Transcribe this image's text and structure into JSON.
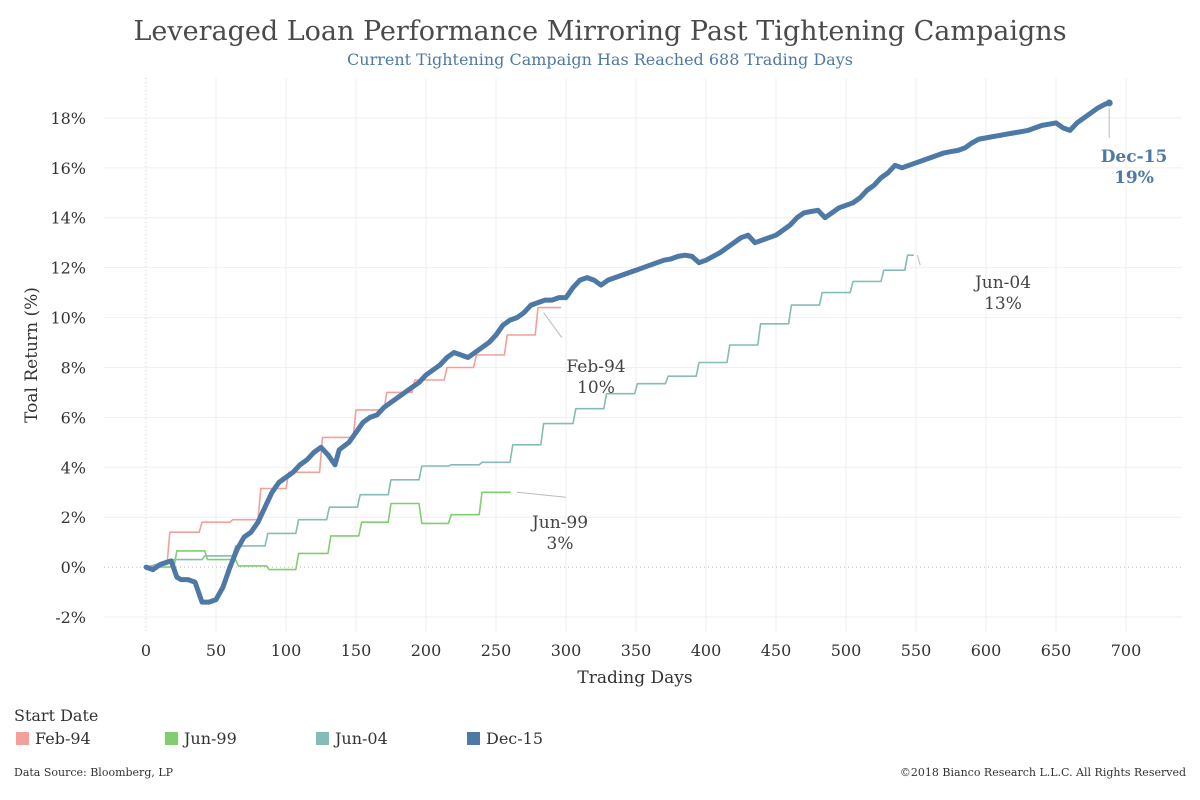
{
  "chart_data": {
    "type": "line",
    "title": "Leveraged Loan Performance Mirroring Past Tightening Campaigns",
    "subtitle": "Current Tightening Campaign Has Reached 688 Trading Days",
    "xlabel": "Trading Days",
    "ylabel": "Toal Return (%)",
    "xlim": [
      -30,
      740
    ],
    "ylim": [
      -2.6,
      19.6
    ],
    "xticks": [
      0,
      50,
      100,
      150,
      200,
      250,
      300,
      350,
      400,
      450,
      500,
      550,
      600,
      650,
      700
    ],
    "yticks": [
      -2,
      0,
      2,
      4,
      6,
      8,
      10,
      12,
      14,
      16,
      18
    ],
    "grid": true,
    "legend_position": "bottom-left",
    "legend_title": "Start Date",
    "series": [
      {
        "name": "Feb-94",
        "color": "#f4a09a",
        "line": "step",
        "points": [
          [
            0,
            0
          ],
          [
            15,
            0.1
          ],
          [
            17,
            1.4
          ],
          [
            38,
            1.4
          ],
          [
            40,
            1.8
          ],
          [
            60,
            1.8
          ],
          [
            62,
            1.9
          ],
          [
            80,
            1.9
          ],
          [
            82,
            3.15
          ],
          [
            100,
            3.15
          ],
          [
            102,
            3.8
          ],
          [
            124,
            3.8
          ],
          [
            126,
            5.2
          ],
          [
            148,
            5.2
          ],
          [
            150,
            6.3
          ],
          [
            170,
            6.3
          ],
          [
            172,
            7.0
          ],
          [
            190,
            7.0
          ],
          [
            192,
            7.5
          ],
          [
            213,
            7.5
          ],
          [
            215,
            8.0
          ],
          [
            234,
            8.0
          ],
          [
            236,
            8.5
          ],
          [
            256,
            8.5
          ],
          [
            258,
            9.3
          ],
          [
            278,
            9.3
          ],
          [
            280,
            10.4
          ],
          [
            296,
            10.4
          ]
        ]
      },
      {
        "name": "Jun-99",
        "color": "#7fcf6e",
        "line": "step",
        "points": [
          [
            0,
            0
          ],
          [
            20,
            0
          ],
          [
            22,
            0.65
          ],
          [
            42,
            0.65
          ],
          [
            44,
            0.3
          ],
          [
            64,
            0.3
          ],
          [
            66,
            0.05
          ],
          [
            86,
            0.05
          ],
          [
            88,
            -0.1
          ],
          [
            107,
            -0.1
          ],
          [
            109,
            0.55
          ],
          [
            130,
            0.55
          ],
          [
            132,
            1.25
          ],
          [
            152,
            1.25
          ],
          [
            154,
            1.8
          ],
          [
            173,
            1.8
          ],
          [
            175,
            2.55
          ],
          [
            195,
            2.55
          ],
          [
            197,
            1.75
          ],
          [
            216,
            1.75
          ],
          [
            218,
            2.1
          ],
          [
            238,
            2.1
          ],
          [
            240,
            3.0
          ],
          [
            260,
            3.0
          ]
        ]
      },
      {
        "name": "Jun-04",
        "color": "#86bcb6",
        "line": "step",
        "points": [
          [
            0,
            0
          ],
          [
            20,
            0.3
          ],
          [
            40,
            0.3
          ],
          [
            42,
            0.45
          ],
          [
            62,
            0.45
          ],
          [
            64,
            0.85
          ],
          [
            85,
            0.85
          ],
          [
            87,
            1.35
          ],
          [
            107,
            1.35
          ],
          [
            109,
            1.9
          ],
          [
            129,
            1.9
          ],
          [
            131,
            2.4
          ],
          [
            151,
            2.4
          ],
          [
            153,
            2.9
          ],
          [
            173,
            2.9
          ],
          [
            175,
            3.5
          ],
          [
            195,
            3.5
          ],
          [
            197,
            4.05
          ],
          [
            216,
            4.05
          ],
          [
            218,
            4.1
          ],
          [
            238,
            4.1
          ],
          [
            240,
            4.2
          ],
          [
            260,
            4.2
          ],
          [
            262,
            4.9
          ],
          [
            282,
            4.9
          ],
          [
            284,
            5.75
          ],
          [
            305,
            5.75
          ],
          [
            307,
            6.35
          ],
          [
            327,
            6.35
          ],
          [
            329,
            6.95
          ],
          [
            349,
            6.95
          ],
          [
            351,
            7.35
          ],
          [
            371,
            7.35
          ],
          [
            373,
            7.65
          ],
          [
            393,
            7.65
          ],
          [
            395,
            8.2
          ],
          [
            415,
            8.2
          ],
          [
            417,
            8.9
          ],
          [
            437,
            8.9
          ],
          [
            439,
            9.75
          ],
          [
            459,
            9.75
          ],
          [
            461,
            10.5
          ],
          [
            481,
            10.5
          ],
          [
            483,
            11.0
          ],
          [
            503,
            11.0
          ],
          [
            505,
            11.45
          ],
          [
            525,
            11.45
          ],
          [
            527,
            11.9
          ],
          [
            542,
            11.9
          ],
          [
            544,
            12.5
          ],
          [
            548,
            12.5
          ]
        ]
      },
      {
        "name": "Dec-15",
        "color": "#4e79a7",
        "line": "smooth",
        "points": [
          [
            0,
            0
          ],
          [
            5,
            -0.1
          ],
          [
            10,
            0.1
          ],
          [
            15,
            0.2
          ],
          [
            18,
            0.25
          ],
          [
            22,
            -0.4
          ],
          [
            25,
            -0.5
          ],
          [
            30,
            -0.5
          ],
          [
            35,
            -0.6
          ],
          [
            40,
            -1.4
          ],
          [
            45,
            -1.4
          ],
          [
            50,
            -1.3
          ],
          [
            55,
            -0.8
          ],
          [
            60,
            0.0
          ],
          [
            65,
            0.7
          ],
          [
            70,
            1.2
          ],
          [
            75,
            1.4
          ],
          [
            80,
            1.8
          ],
          [
            85,
            2.4
          ],
          [
            90,
            3.0
          ],
          [
            95,
            3.4
          ],
          [
            100,
            3.6
          ],
          [
            105,
            3.8
          ],
          [
            110,
            4.1
          ],
          [
            115,
            4.3
          ],
          [
            120,
            4.6
          ],
          [
            125,
            4.8
          ],
          [
            130,
            4.5
          ],
          [
            135,
            4.1
          ],
          [
            138,
            4.7
          ],
          [
            145,
            5.0
          ],
          [
            150,
            5.4
          ],
          [
            155,
            5.8
          ],
          [
            160,
            6.0
          ],
          [
            165,
            6.1
          ],
          [
            170,
            6.4
          ],
          [
            175,
            6.6
          ],
          [
            180,
            6.8
          ],
          [
            185,
            7.0
          ],
          [
            190,
            7.2
          ],
          [
            195,
            7.4
          ],
          [
            200,
            7.7
          ],
          [
            205,
            7.9
          ],
          [
            210,
            8.1
          ],
          [
            215,
            8.4
          ],
          [
            220,
            8.6
          ],
          [
            225,
            8.5
          ],
          [
            230,
            8.4
          ],
          [
            235,
            8.6
          ],
          [
            240,
            8.8
          ],
          [
            245,
            9.0
          ],
          [
            250,
            9.3
          ],
          [
            255,
            9.7
          ],
          [
            260,
            9.9
          ],
          [
            265,
            10.0
          ],
          [
            270,
            10.2
          ],
          [
            275,
            10.5
          ],
          [
            280,
            10.6
          ],
          [
            285,
            10.7
          ],
          [
            290,
            10.7
          ],
          [
            295,
            10.8
          ],
          [
            300,
            10.8
          ],
          [
            305,
            11.2
          ],
          [
            310,
            11.5
          ],
          [
            315,
            11.6
          ],
          [
            320,
            11.5
          ],
          [
            325,
            11.3
          ],
          [
            330,
            11.5
          ],
          [
            335,
            11.6
          ],
          [
            340,
            11.7
          ],
          [
            345,
            11.8
          ],
          [
            350,
            11.9
          ],
          [
            355,
            12.0
          ],
          [
            360,
            12.1
          ],
          [
            365,
            12.2
          ],
          [
            370,
            12.3
          ],
          [
            375,
            12.35
          ],
          [
            380,
            12.45
          ],
          [
            385,
            12.5
          ],
          [
            390,
            12.45
          ],
          [
            395,
            12.2
          ],
          [
            400,
            12.3
          ],
          [
            410,
            12.6
          ],
          [
            420,
            13.0
          ],
          [
            425,
            13.2
          ],
          [
            430,
            13.3
          ],
          [
            435,
            13.0
          ],
          [
            440,
            13.1
          ],
          [
            445,
            13.2
          ],
          [
            450,
            13.3
          ],
          [
            455,
            13.5
          ],
          [
            460,
            13.7
          ],
          [
            465,
            14.0
          ],
          [
            470,
            14.2
          ],
          [
            475,
            14.25
          ],
          [
            480,
            14.3
          ],
          [
            485,
            14.0
          ],
          [
            490,
            14.2
          ],
          [
            495,
            14.4
          ],
          [
            500,
            14.5
          ],
          [
            505,
            14.6
          ],
          [
            510,
            14.8
          ],
          [
            515,
            15.1
          ],
          [
            520,
            15.3
          ],
          [
            525,
            15.6
          ],
          [
            530,
            15.8
          ],
          [
            535,
            16.1
          ],
          [
            540,
            16.0
          ],
          [
            545,
            16.1
          ],
          [
            550,
            16.2
          ],
          [
            555,
            16.3
          ],
          [
            560,
            16.4
          ],
          [
            565,
            16.5
          ],
          [
            570,
            16.6
          ],
          [
            575,
            16.65
          ],
          [
            580,
            16.7
          ],
          [
            585,
            16.8
          ],
          [
            590,
            17.0
          ],
          [
            595,
            17.15
          ],
          [
            600,
            17.2
          ],
          [
            605,
            17.25
          ],
          [
            610,
            17.3
          ],
          [
            615,
            17.35
          ],
          [
            620,
            17.4
          ],
          [
            625,
            17.45
          ],
          [
            630,
            17.5
          ],
          [
            635,
            17.6
          ],
          [
            640,
            17.7
          ],
          [
            645,
            17.75
          ],
          [
            650,
            17.8
          ],
          [
            655,
            17.6
          ],
          [
            660,
            17.5
          ],
          [
            665,
            17.8
          ],
          [
            670,
            18.0
          ],
          [
            675,
            18.2
          ],
          [
            680,
            18.4
          ],
          [
            685,
            18.55
          ],
          [
            688,
            18.6
          ]
        ]
      }
    ],
    "annotations": [
      {
        "series": "Feb-94",
        "lines": [
          "Feb-94",
          "10%"
        ]
      },
      {
        "series": "Jun-99",
        "lines": [
          "Jun-99",
          "3%"
        ]
      },
      {
        "series": "Jun-04",
        "lines": [
          "Jun-04",
          "13%"
        ]
      },
      {
        "series": "Dec-15",
        "lines": [
          "Dec-15",
          "19%"
        ]
      }
    ]
  },
  "legend": {
    "title": "Start Date",
    "items": [
      {
        "label": "Feb-94",
        "color": "#f4a09a"
      },
      {
        "label": "Jun-99",
        "color": "#7fcf6e"
      },
      {
        "label": "Jun-04",
        "color": "#86bcb6"
      },
      {
        "label": "Dec-15",
        "color": "#4e79a7"
      }
    ]
  },
  "footer": {
    "source": "Data Source: Bloomberg, LP",
    "copyright": "©2018 Bianco Research L.L.C.  All Rights Reserved"
  }
}
